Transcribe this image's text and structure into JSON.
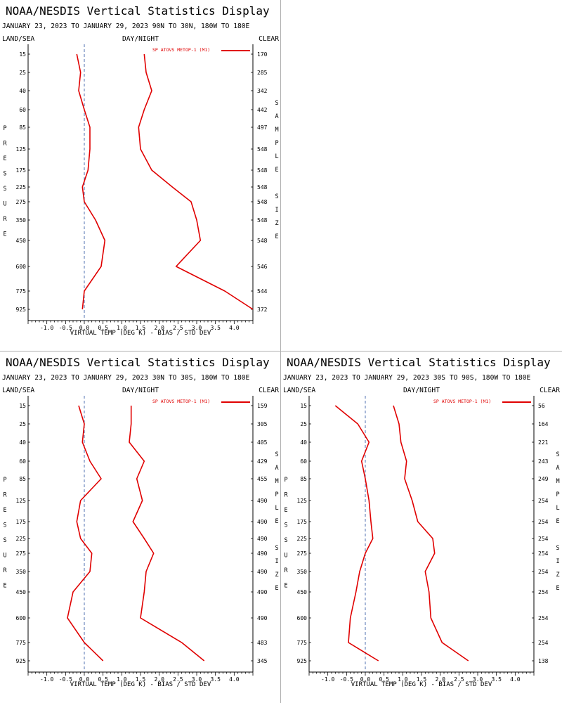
{
  "chart_data": [
    {
      "type": "line",
      "title": "NOAA/NESDIS Vertical Statistics Display",
      "subtitle": "JANUARY 23, 2023 TO JANUARY 29, 2023 90N TO 30N, 180W TO 180E",
      "header_left": "LAND/SEA",
      "header_center": "DAY/NIGHT",
      "header_right": "CLEAR",
      "xlabel": "VIRTUAL TEMP (DEG K) - BIAS / STD DEV",
      "ylabel": "PRESSURE",
      "y2label": "SAMPLE SIZE",
      "xlim": [
        -1.5,
        4.5
      ],
      "xticks": [
        -1.0,
        -0.5,
        0.0,
        0.5,
        1.0,
        1.5,
        2.0,
        2.5,
        3.0,
        3.5,
        4.0
      ],
      "pressure_levels": [
        15,
        25,
        40,
        60,
        85,
        125,
        175,
        225,
        275,
        350,
        450,
        600,
        775,
        925
      ],
      "sample_size": [
        170,
        285,
        342,
        442,
        497,
        548,
        548,
        548,
        548,
        548,
        548,
        546,
        544,
        372
      ],
      "legend": "SP ATOVS METOP-1 (M1)",
      "line_color": "#e00000",
      "series": [
        {
          "name": "BIAS",
          "values": [
            -0.2,
            -0.1,
            -0.15,
            0.0,
            0.15,
            0.15,
            0.1,
            -0.05,
            0.0,
            0.3,
            0.55,
            0.45,
            0.0,
            -0.05
          ]
        },
        {
          "name": "STD DEV",
          "values": [
            1.6,
            1.65,
            1.8,
            1.6,
            1.45,
            1.5,
            1.8,
            2.35,
            2.85,
            3.0,
            3.1,
            2.45,
            3.75,
            4.5
          ]
        }
      ]
    },
    {
      "type": "line",
      "title": "NOAA/NESDIS Vertical Statistics Display",
      "subtitle": "JANUARY 23, 2023 TO JANUARY 29, 2023 30N TO 30S, 180W TO 180E",
      "header_left": "LAND/SEA",
      "header_center": "DAY/NIGHT",
      "header_right": "CLEAR",
      "xlabel": "VIRTUAL TEMP (DEG K) - BIAS / STD DEV",
      "ylabel": "PRESSURE",
      "y2label": "SAMPLE SIZE",
      "xlim": [
        -1.5,
        4.5
      ],
      "xticks": [
        -1.0,
        -0.5,
        0.0,
        0.5,
        1.0,
        1.5,
        2.0,
        2.5,
        3.0,
        3.5,
        4.0
      ],
      "pressure_levels": [
        15,
        25,
        40,
        60,
        85,
        125,
        175,
        225,
        275,
        350,
        450,
        600,
        775,
        925
      ],
      "sample_size": [
        159,
        305,
        405,
        429,
        455,
        490,
        490,
        490,
        490,
        490,
        490,
        490,
        483,
        345
      ],
      "legend": "SP ATOVS METOP-1 (M1)",
      "line_color": "#e00000",
      "series": [
        {
          "name": "BIAS",
          "values": [
            -0.15,
            0.0,
            -0.05,
            0.15,
            0.45,
            -0.1,
            -0.2,
            -0.1,
            0.2,
            0.15,
            -0.3,
            -0.45,
            0.0,
            0.5
          ]
        },
        {
          "name": "STD DEV",
          "values": [
            1.25,
            1.25,
            1.2,
            1.6,
            1.4,
            1.55,
            1.3,
            1.6,
            1.85,
            1.65,
            1.6,
            1.5,
            2.6,
            3.2
          ]
        }
      ]
    },
    {
      "type": "line",
      "title": "NOAA/NESDIS Vertical Statistics Display",
      "subtitle": "JANUARY 23, 2023 TO JANUARY 29, 2023 30S TO 90S, 180W TO 180E",
      "header_left": "LAND/SEA",
      "header_center": "DAY/NIGHT",
      "header_right": "CLEAR",
      "xlabel": "VIRTUAL TEMP (DEG K) - BIAS / STD DEV",
      "ylabel": "PRESSURE",
      "y2label": "SAMPLE SIZE",
      "xlim": [
        -1.5,
        4.5
      ],
      "xticks": [
        -1.0,
        -0.5,
        0.0,
        0.5,
        1.0,
        1.5,
        2.0,
        2.5,
        3.0,
        3.5,
        4.0
      ],
      "pressure_levels": [
        15,
        25,
        40,
        60,
        85,
        125,
        175,
        225,
        275,
        350,
        450,
        600,
        775,
        925
      ],
      "sample_size": [
        56,
        164,
        221,
        243,
        249,
        254,
        254,
        254,
        254,
        254,
        254,
        254,
        254,
        138
      ],
      "legend": "SP ATOVS METOP-1 (M1)",
      "line_color": "#e00000",
      "series": [
        {
          "name": "BIAS",
          "values": [
            -0.8,
            -0.2,
            0.1,
            -0.1,
            0.0,
            0.1,
            0.15,
            0.2,
            0.0,
            -0.15,
            -0.25,
            -0.4,
            -0.45,
            0.35
          ]
        },
        {
          "name": "STD DEV",
          "values": [
            0.75,
            0.9,
            0.95,
            1.1,
            1.05,
            1.25,
            1.4,
            1.8,
            1.85,
            1.6,
            1.7,
            1.75,
            2.05,
            2.75
          ]
        }
      ]
    }
  ]
}
